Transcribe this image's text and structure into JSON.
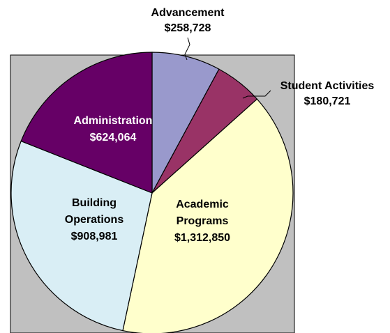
{
  "chart_data": {
    "type": "pie",
    "title": "",
    "slices": [
      {
        "label": "Advancement",
        "value_text": "$258,728",
        "value": 258728,
        "color": "#9999cc",
        "label_color": "#000000"
      },
      {
        "label": "Student Activities",
        "value_text": "$180,721",
        "value": 180721,
        "color": "#993366",
        "label_color": "#000000"
      },
      {
        "label": "Academic Programs",
        "label_lines": [
          "Academic",
          "Programs"
        ],
        "value_text": "$1,312,850",
        "value": 1312850,
        "color": "#ffffcc",
        "label_color": "#000000"
      },
      {
        "label": "Building Operations",
        "label_lines": [
          "Building",
          "Operations"
        ],
        "value_text": "$908,981",
        "value": 908981,
        "color": "#d9eef5",
        "label_color": "#000000"
      },
      {
        "label": "Administration",
        "value_text": "$624,064",
        "value": 624064,
        "color": "#660066",
        "label_color": "#ffffff"
      }
    ],
    "start_angle_deg": 0,
    "direction": "clockwise",
    "plot_area_color": "#c0c0c0"
  }
}
